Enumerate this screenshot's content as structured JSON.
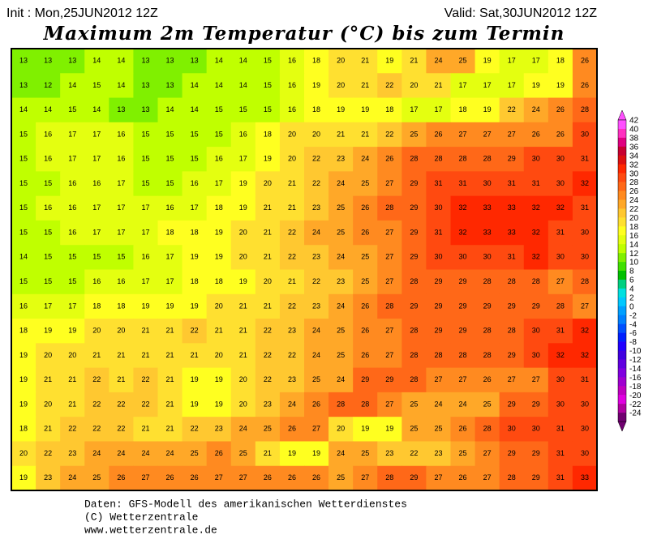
{
  "header": {
    "init": "Init : Mon,25JUN2012 12Z",
    "valid": "Valid: Sat,30JUN2012 12Z",
    "title": "Maximum 2m Temperatur (°C) bis zum Termin"
  },
  "map": {
    "values": [
      [
        13,
        13,
        13,
        14,
        14,
        13,
        13,
        13,
        14,
        14,
        15,
        16,
        18,
        20,
        21,
        19,
        21,
        24,
        25,
        19,
        17,
        17,
        18,
        26
      ],
      [
        13,
        12,
        14,
        15,
        14,
        13,
        13,
        14,
        14,
        14,
        15,
        16,
        19,
        20,
        21,
        22,
        20,
        21,
        17,
        17,
        17,
        19,
        19,
        26
      ],
      [
        14,
        14,
        15,
        14,
        13,
        13,
        14,
        14,
        15,
        15,
        15,
        16,
        18,
        19,
        19,
        18,
        17,
        17,
        18,
        19,
        22,
        24,
        26,
        28
      ],
      [
        15,
        16,
        17,
        17,
        16,
        15,
        15,
        15,
        15,
        16,
        18,
        20,
        20,
        21,
        21,
        22,
        25,
        26,
        27,
        27,
        27,
        26,
        26,
        30
      ],
      [
        15,
        16,
        17,
        17,
        16,
        15,
        15,
        15,
        16,
        17,
        19,
        20,
        22,
        23,
        24,
        26,
        28,
        28,
        28,
        28,
        29,
        30,
        30,
        31
      ],
      [
        15,
        15,
        16,
        16,
        17,
        15,
        15,
        16,
        17,
        19,
        20,
        21,
        22,
        24,
        25,
        27,
        29,
        31,
        31,
        30,
        31,
        31,
        30,
        32
      ],
      [
        15,
        16,
        16,
        17,
        17,
        17,
        16,
        17,
        18,
        19,
        21,
        21,
        23,
        25,
        26,
        28,
        29,
        30,
        32,
        33,
        33,
        32,
        32,
        31
      ],
      [
        15,
        15,
        16,
        17,
        17,
        17,
        18,
        18,
        19,
        20,
        21,
        22,
        24,
        25,
        26,
        27,
        29,
        31,
        32,
        33,
        33,
        32,
        31,
        30
      ],
      [
        14,
        15,
        15,
        15,
        15,
        16,
        17,
        19,
        19,
        20,
        21,
        22,
        23,
        24,
        25,
        27,
        29,
        30,
        30,
        30,
        31,
        32,
        30,
        30
      ],
      [
        15,
        15,
        15,
        16,
        16,
        17,
        17,
        18,
        18,
        19,
        20,
        21,
        22,
        23,
        25,
        27,
        28,
        29,
        29,
        28,
        28,
        28,
        27,
        28
      ],
      [
        16,
        17,
        17,
        18,
        18,
        19,
        19,
        19,
        20,
        21,
        21,
        22,
        23,
        24,
        26,
        28,
        29,
        29,
        29,
        29,
        29,
        29,
        28,
        27
      ],
      [
        18,
        19,
        19,
        20,
        20,
        21,
        21,
        22,
        21,
        21,
        22,
        23,
        24,
        25,
        26,
        27,
        28,
        29,
        29,
        28,
        28,
        30,
        31,
        32
      ],
      [
        19,
        20,
        20,
        21,
        21,
        21,
        21,
        21,
        20,
        21,
        22,
        22,
        24,
        25,
        26,
        27,
        28,
        28,
        28,
        28,
        29,
        30,
        32,
        32
      ],
      [
        19,
        21,
        21,
        22,
        21,
        22,
        21,
        19,
        19,
        20,
        22,
        23,
        25,
        24,
        29,
        29,
        28,
        27,
        27,
        26,
        27,
        27,
        30,
        31
      ],
      [
        19,
        20,
        21,
        22,
        22,
        22,
        21,
        19,
        19,
        20,
        23,
        24,
        26,
        28,
        28,
        27,
        25,
        24,
        24,
        25,
        29,
        29,
        30,
        30
      ],
      [
        18,
        21,
        22,
        22,
        22,
        21,
        21,
        22,
        23,
        24,
        25,
        26,
        27,
        20,
        19,
        19,
        25,
        25,
        26,
        28,
        30,
        30,
        31,
        30
      ],
      [
        20,
        22,
        23,
        24,
        24,
        24,
        24,
        25,
        26,
        25,
        21,
        19,
        19,
        24,
        25,
        23,
        22,
        23,
        25,
        27,
        29,
        29,
        31,
        30
      ],
      [
        19,
        23,
        24,
        25,
        26,
        27,
        26,
        26,
        27,
        27,
        26,
        26,
        26,
        25,
        27,
        28,
        29,
        27,
        26,
        27,
        28,
        29,
        31,
        33
      ]
    ]
  },
  "colorbar": {
    "values": [
      42,
      40,
      38,
      36,
      34,
      32,
      30,
      28,
      26,
      24,
      22,
      20,
      18,
      16,
      14,
      12,
      10,
      8,
      6,
      4,
      2,
      0,
      -2,
      -4,
      -6,
      -8,
      -10,
      -12,
      -14,
      -16,
      -18,
      -20,
      -22,
      -24
    ],
    "colors": [
      "#ff50ff",
      "#ff30c0",
      "#e00080",
      "#c80030",
      "#dd1010",
      "#ff2800",
      "#ff4a10",
      "#ff6818",
      "#ff8a20",
      "#ffa828",
      "#ffc830",
      "#ffe030",
      "#ffff20",
      "#e4ff10",
      "#c0ff00",
      "#80f000",
      "#40e000",
      "#00c000",
      "#00d080",
      "#00e0e0",
      "#00c8ff",
      "#00a0ff",
      "#0080ff",
      "#0050ff",
      "#0020ff",
      "#2000ff",
      "#4000e0",
      "#6000e0",
      "#8000e0",
      "#a000d0",
      "#c000c0",
      "#e000e0",
      "#b000a0",
      "#700070"
    ]
  },
  "footer": {
    "line1": "Daten: GFS-Modell des amerikanischen Wetterdienstes",
    "line2": "(C) Wetterzentrale",
    "line3": "www.wetterzentrale.de"
  }
}
